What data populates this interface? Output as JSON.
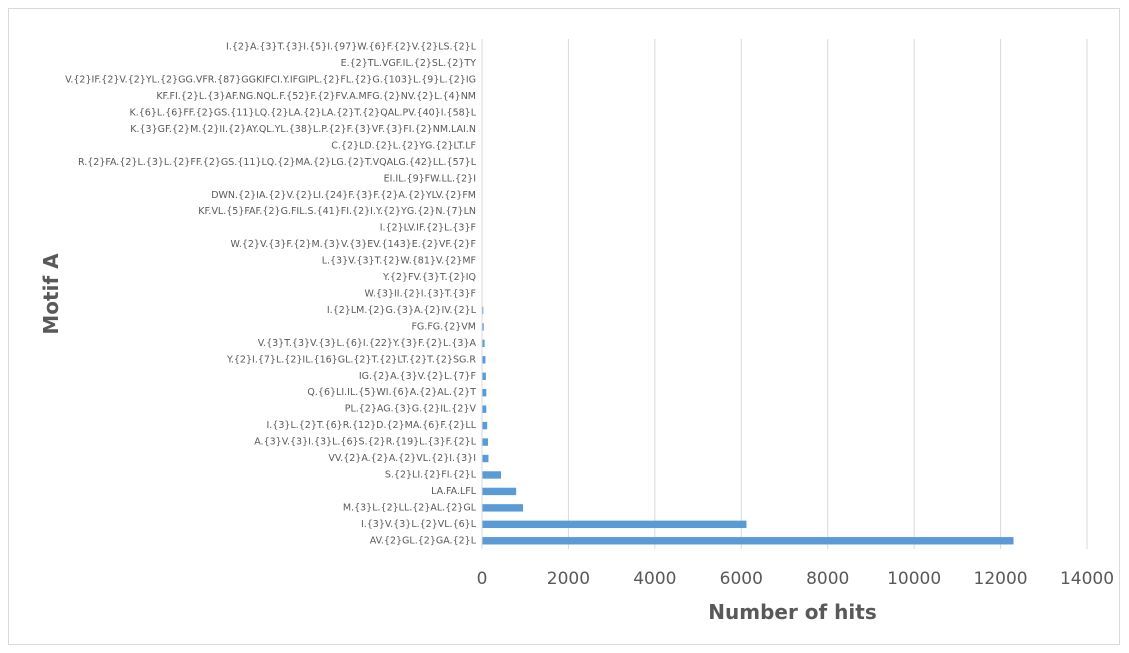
{
  "chart_data": {
    "type": "bar",
    "orientation": "horizontal",
    "title": "",
    "xlabel": "Number of hits",
    "ylabel": "Motif A",
    "xlim": [
      0,
      14000
    ],
    "xticks": [
      0,
      2000,
      4000,
      6000,
      8000,
      10000,
      12000,
      14000
    ],
    "grid": "vertical-major",
    "legend": "none",
    "bar_color": "#5b9bd5",
    "categories": [
      "AV.{2}GL.{2}GA.{2}L",
      "I.{3}V.{3}L.{2}VL.{6}L",
      "M.{3}L.{2}LL.{2}AL.{2}GL",
      "LA.FA.LFL",
      "S.{2}LI.{2}FI.{2}L",
      "VV.{2}A.{2}A.{2}VL.{2}I.{3}I",
      "A.{3}V.{3}I.{3}L.{6}S.{2}R.{19}L.{3}F.{2}L",
      "I.{3}L.{2}T.{6}R.{12}D.{2}MA.{6}F.{2}LL",
      "PL.{2}AG.{3}G.{2}IL.{2}V",
      "Q.{6}LI.IL.{5}WI.{6}A.{2}AL.{2}T",
      "IG.{2}A.{3}V.{2}L.{7}F",
      "Y.{2}I.{7}L.{2}IL.{16}GL.{2}T.{2}LT.{2}T.{2}SG.R",
      "V.{3}T.{3}V.{3}L.{6}I.{22}Y.{3}F.{2}L.{3}A",
      "FG.FG.{2}VM",
      "I.{2}LM.{2}G.{3}A.{2}IV.{2}L",
      "W.{3}II.{2}I.{3}T.{3}F",
      "Y.{2}FV.{3}T.{2}IQ",
      "L.{3}V.{3}T.{2}W.{81}V.{2}MF",
      "W.{2}V.{3}F.{2}M.{3}V.{3}EV.{143}E.{2}VF.{2}F",
      "I.{2}LV.IF.{2}L.{3}F",
      "KF.VL.{5}FAF.{2}G.FIL.S.{41}FI.{2}I.Y.{2}YG.{2}N.{7}LN",
      "DWN.{2}IA.{2}V.{2}LI.{24}F.{3}F.{2}A.{2}YLV.{2}FM",
      "EI.IL.{9}FW.LL.{2}I",
      "R.{2}FA.{2}L.{3}L.{2}FF.{2}GS.{11}LQ.{2}MA.{2}LG.{2}T.VQALG.{42}LL.{57}L",
      "C.{2}LD.{2}L.{2}YG.{2}LT.LF",
      "K.{3}GF.{2}M.{2}II.{2}AY.QL.YL.{38}L.P.{2}F.{3}VF.{3}FI.{2}NM.LAI.N",
      "K.{6}L.{6}FF.{2}GS.{11}LQ.{2}LA.{2}LA.{2}T.{2}QAL.PV.{40}I.{58}L",
      "KF.FI.{2}L.{3}AF.NG.NQL.F.{52}F.{2}FV.A.MFG.{2}NV.{2}L.{4}NM",
      "V.{2}IF.{2}V.{2}YL.{2}GG.VFR.{87}GGKIFCI.Y.IFGIPL.{2}FL.{2}G.{103}L.{9}L.{2}IG",
      "E.{2}TL.VGF.IL.{2}SL.{2}TY",
      "I.{2}A.{3}T.{3}I.{5}I.{97}W.{6}F.{2}V.{2}LS.{2}L"
    ],
    "values": [
      12300,
      6120,
      950,
      790,
      440,
      150,
      140,
      120,
      100,
      100,
      90,
      80,
      60,
      40,
      30,
      10,
      8,
      6,
      5,
      5,
      4,
      4,
      3,
      3,
      3,
      2,
      2,
      2,
      2,
      1,
      1
    ]
  }
}
